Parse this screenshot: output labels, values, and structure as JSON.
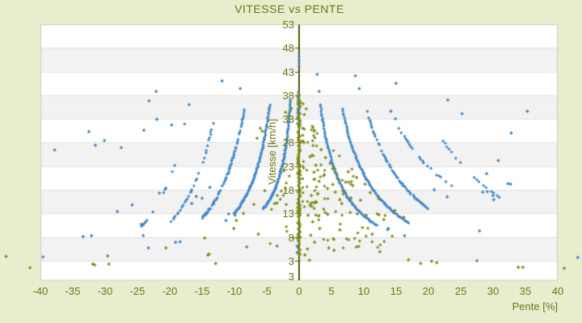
{
  "title": "VITESSE vs PENTE",
  "axes": {
    "x_label": "Pente [%]",
    "y_label": "Vitesse [km/h]",
    "x_ticks": [
      -40,
      -35,
      -30,
      -25,
      -20,
      -15,
      -10,
      -5,
      0,
      5,
      10,
      15,
      20,
      25,
      30,
      35,
      40
    ],
    "y_ticks": [
      3,
      8,
      13,
      18,
      23,
      28,
      33,
      38,
      43,
      48,
      53
    ],
    "y_axis_min_label": "3"
  },
  "colors": {
    "page_background": "#e8eecd",
    "plot_background": "#ffffff",
    "band": "#f2f2f2",
    "grid": "#e3e3e3",
    "border": "#cccccc",
    "axis_line": "#4c5608",
    "text": "#6c7518",
    "series_blue": "#3e86c8",
    "series_olive": "#7e8a16"
  },
  "chart_data": {
    "type": "scatter",
    "title": "VITESSE vs PENTE",
    "xlabel": "Pente [%]",
    "ylabel": "Vitesse [km/h]",
    "xlim": [
      -40,
      40
    ],
    "ylim": [
      3,
      53
    ],
    "x_ticks": [
      -40,
      -35,
      -30,
      -25,
      -20,
      -15,
      -10,
      -5,
      0,
      5,
      10,
      15,
      20,
      25,
      30,
      35,
      40
    ],
    "y_ticks": [
      3,
      8,
      13,
      18,
      23,
      28,
      33,
      38,
      43,
      48,
      53
    ],
    "grid": "horizontal-bands",
    "legend": "none",
    "seed": 7,
    "series": [
      {
        "name": "vitesse-pente-bleu",
        "color": "#3e86c8",
        "arcs": [
          {
            "p1": -1.3,
            "v1": 37.0,
            "p2": -5.5,
            "v2": 14.0,
            "n": 85,
            "keep": 1.0
          },
          {
            "p1": -4.5,
            "v1": 36.0,
            "p2": -10.0,
            "v2": 13.0,
            "n": 85,
            "keep": 1.0
          },
          {
            "p1": -8.5,
            "v1": 35.0,
            "p2": -15.0,
            "v2": 12.0,
            "n": 80,
            "keep": 0.8
          },
          {
            "p1": -13.0,
            "v1": 34.0,
            "p2": -20.0,
            "v2": 11.0,
            "n": 58,
            "keep": 0.55
          },
          {
            "p1": -17.5,
            "v1": 33.0,
            "p2": -24.5,
            "v2": 10.0,
            "n": 42,
            "keep": 0.4
          },
          {
            "p1": 3.3,
            "v1": 36.0,
            "p2": 12.0,
            "v2": 10.5,
            "n": 90,
            "keep": 1.0
          },
          {
            "p1": 6.7,
            "v1": 35.0,
            "p2": 17.0,
            "v2": 11.0,
            "n": 88,
            "keep": 1.0
          },
          {
            "p1": 10.5,
            "v1": 34.5,
            "p2": 20.0,
            "v2": 14.0,
            "n": 72,
            "keep": 0.75
          },
          {
            "p1": 15.5,
            "v1": 31.0,
            "p2": 25.0,
            "v2": 17.5,
            "n": 40,
            "keep": 0.5
          },
          {
            "p1": 22.0,
            "v1": 29.0,
            "p2": 31.0,
            "v2": 16.5,
            "n": 26,
            "keep": 0.45
          }
        ],
        "clusters": [
          {
            "p": [
              -0.25,
              0.12
            ],
            "v": [
              31.3,
              38.6
            ],
            "n": 26
          }
        ],
        "points": [
          [
            -39.6,
            3.8
          ],
          [
            -37.8,
            26.4
          ],
          [
            -33.4,
            8.1
          ],
          [
            -32.5,
            30.3
          ],
          [
            -32.1,
            8.3
          ],
          [
            -31.5,
            27.4
          ],
          [
            -30.1,
            28.4
          ],
          [
            -28.1,
            13.4
          ],
          [
            -27.5,
            26.9
          ],
          [
            -25.8,
            14.8
          ],
          [
            -24.4,
            10.7
          ],
          [
            -24.1,
            8.3
          ],
          [
            -24,
            30.6
          ],
          [
            -23.3,
            5.7
          ],
          [
            -23.2,
            36.8
          ],
          [
            -22.1,
            38.8
          ],
          [
            -22,
            32.9
          ],
          [
            -21.6,
            17.3
          ],
          [
            -20.6,
            18.3
          ],
          [
            -19.7,
            31.7
          ],
          [
            -19.1,
            6.9
          ],
          [
            -18.4,
            7
          ],
          [
            -17,
            36
          ],
          [
            -16.6,
            15.1
          ],
          [
            -15.9,
            16.6
          ],
          [
            -15,
            16.2
          ],
          [
            -13.8,
            18.5
          ],
          [
            -11.9,
            41
          ],
          [
            -11.3,
            11.5
          ],
          [
            -10.9,
            12.9
          ],
          [
            -9.9,
            12.6
          ],
          [
            -9.1,
            39.4
          ],
          [
            -8.1,
            5.9
          ],
          [
            -3.4,
            6.1
          ],
          [
            -0.3,
            6.1
          ],
          [
            -0.3,
            4.7
          ],
          [
            0,
            46.2
          ],
          [
            0,
            45.3
          ],
          [
            0,
            44.1
          ],
          [
            2.8,
            42.4
          ],
          [
            3.1,
            38.8
          ],
          [
            8.7,
            42.1
          ],
          [
            9.3,
            39.4
          ],
          [
            15,
            40.5
          ],
          [
            14.2,
            34.6
          ],
          [
            14.9,
            33
          ],
          [
            23,
            37
          ],
          [
            25.2,
            34.1
          ],
          [
            35.3,
            34.6
          ],
          [
            20.9,
            18
          ],
          [
            22.9,
            16.5
          ],
          [
            28.4,
            17.5
          ],
          [
            29.1,
            17.6
          ],
          [
            30,
            16.8
          ],
          [
            30.1,
            15.9
          ],
          [
            27.9,
            9.3
          ],
          [
            27.5,
            3
          ],
          [
            16.3,
            8.3
          ],
          [
            13.8,
            9.8
          ],
          [
            13.7,
            9.6
          ],
          [
            32.8,
            30
          ],
          [
            30.8,
            24.2
          ],
          [
            29,
            21.4
          ],
          [
            32.3,
            19.3
          ],
          [
            32.7,
            19.2
          ],
          [
            43.1,
            3.7
          ]
        ]
      },
      {
        "name": "vitesse-pente-olive",
        "color": "#7e8a16",
        "arcs": [],
        "clusters": [
          {
            "p": [
              -0.22,
              0.22
            ],
            "v": [
              2.6,
              38.2
            ],
            "n": 150
          },
          {
            "p": [
              0.35,
              2.8
            ],
            "v": [
              14,
              31.5
            ],
            "n": 42
          },
          {
            "p": [
              2.5,
              8.5
            ],
            "v": [
              12,
              27
            ],
            "n": 30
          },
          {
            "p": [
              3,
              14
            ],
            "v": [
              4.5,
              13
            ],
            "n": 22
          },
          {
            "p": [
              -4.5,
              -0.6
            ],
            "v": [
              6,
              31
            ],
            "n": 14
          }
        ],
        "points": [
          [
            -45.3,
            3.9
          ],
          [
            -41.6,
            1.5
          ],
          [
            -31.9,
            2.3
          ],
          [
            -31.6,
            2.1
          ],
          [
            -29.6,
            4
          ],
          [
            -29.4,
            2.3
          ],
          [
            -20.6,
            5.7
          ],
          [
            -14.6,
            7.8
          ],
          [
            -14.1,
            4.2
          ],
          [
            -13.9,
            4.4
          ],
          [
            -12.9,
            2.4
          ],
          [
            -10.1,
            9.8
          ],
          [
            -9.7,
            11.5
          ],
          [
            -8.6,
            13
          ],
          [
            -7,
            14.9
          ],
          [
            -6.3,
            8.6
          ],
          [
            -6,
            31
          ],
          [
            -5.7,
            30.4
          ],
          [
            -6.5,
            28.9
          ],
          [
            -5.3,
            17.8
          ],
          [
            -3.8,
            15.1
          ],
          [
            -3.4,
            15.2
          ],
          [
            -2,
            14.9
          ],
          [
            -2.1,
            34.4
          ],
          [
            -1.6,
            33.7
          ],
          [
            -1.2,
            35.2
          ],
          [
            0.6,
            36.2
          ],
          [
            1.1,
            35.1
          ],
          [
            0.8,
            33.9
          ],
          [
            1.7,
            25
          ],
          [
            2.9,
            17.2
          ],
          [
            5.6,
            17.5
          ],
          [
            6.3,
            15.9
          ],
          [
            6.6,
            15.1
          ],
          [
            7.9,
            13.2
          ],
          [
            9,
            12.9
          ],
          [
            10.4,
            12.6
          ],
          [
            12.1,
            12.9
          ],
          [
            13.1,
            11.7
          ],
          [
            9.8,
            10
          ],
          [
            11.3,
            8.6
          ],
          [
            6.3,
            9.5
          ],
          [
            4.6,
            5.7
          ],
          [
            5.4,
            5.2
          ],
          [
            9.2,
            6
          ],
          [
            12.5,
            4.9
          ],
          [
            14.4,
            8.2
          ],
          [
            16.9,
            3.2
          ],
          [
            18.8,
            2.4
          ],
          [
            20.5,
            2.9
          ],
          [
            21.3,
            2.6
          ],
          [
            33.9,
            1.6
          ],
          [
            34.6,
            1.6
          ],
          [
            41,
            1.4
          ],
          [
            3.4,
            26.5
          ],
          [
            4.1,
            24.8
          ],
          [
            4.8,
            23.6
          ],
          [
            5.5,
            22.4
          ],
          [
            3.9,
            21.2
          ],
          [
            6.1,
            20.3
          ],
          [
            7.2,
            19.6
          ],
          [
            8.3,
            18.9
          ],
          [
            7.6,
            21.8
          ],
          [
            8.9,
            20.6
          ],
          [
            10.2,
            19.2
          ],
          [
            11,
            17.4
          ],
          [
            12.3,
            16.1
          ],
          [
            14.8,
            13.6
          ],
          [
            16.2,
            12.2
          ],
          [
            9.5,
            15.8
          ],
          [
            5.2,
            19.1
          ],
          [
            2.6,
            23.2
          ],
          [
            3.1,
            19.8
          ],
          [
            2.3,
            21.7
          ],
          [
            4.4,
            18.3
          ],
          [
            1.9,
            16.8
          ],
          [
            2.7,
            15.4
          ],
          [
            3.8,
            13.9
          ],
          [
            1.4,
            12.6
          ],
          [
            2.1,
            11.2
          ],
          [
            3.2,
            9.8
          ],
          [
            1.8,
            8.4
          ],
          [
            2.4,
            6.9
          ],
          [
            1.3,
            5.5
          ],
          [
            0.9,
            4.2
          ],
          [
            1.6,
            3.1
          ]
        ]
      }
    ]
  }
}
